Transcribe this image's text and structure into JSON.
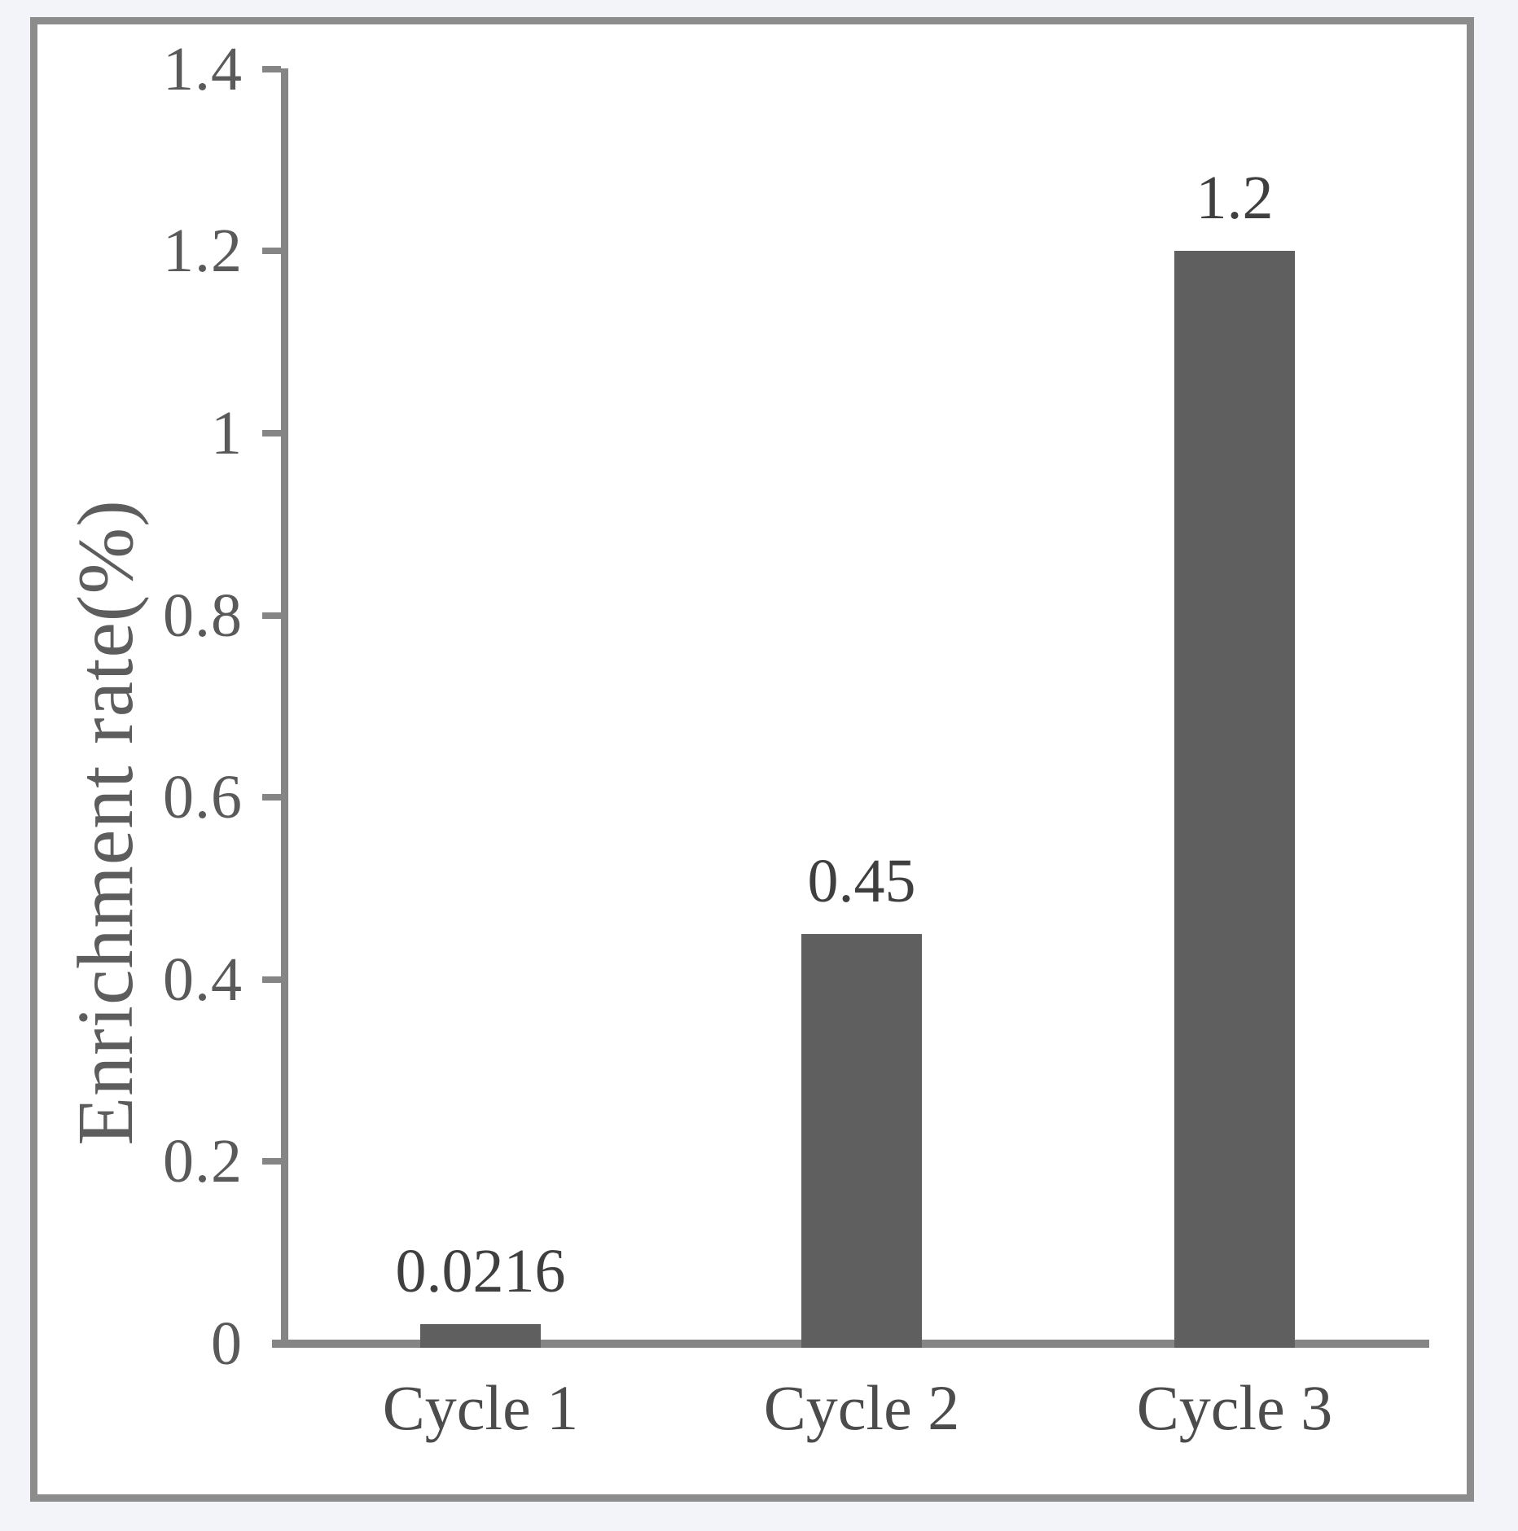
{
  "chart_data": {
    "type": "bar",
    "categories": [
      "Cycle 1",
      "Cycle 2",
      "Cycle 3"
    ],
    "values": [
      0.0216,
      0.45,
      1.2
    ],
    "bar_labels": [
      "0.0216",
      "0.45",
      "1.2"
    ],
    "title": "",
    "xlabel": "",
    "ylabel": "Enrichment rate(%)",
    "ylim": [
      0,
      1.4
    ],
    "ytick_values": [
      0,
      0.2,
      0.4,
      0.6,
      0.8,
      1,
      1.2,
      1.4
    ],
    "ytick_labels": [
      "0",
      "0.2",
      "0.4",
      "0.6",
      "0.8",
      "1",
      "1.2",
      "1.4"
    ],
    "grid": false,
    "legend": false,
    "colors": {
      "bar": "#5f5f5f",
      "axis": "#858585",
      "frame_border": "#8c8c8c",
      "tick_text": "#5a5a5a",
      "value_text": "#3f3f3f",
      "category_text": "#4c4c4c",
      "ylabel_text": "#5d5d5d",
      "outer_background": "#f3f4f9",
      "inner_background": "#ffffff"
    }
  }
}
